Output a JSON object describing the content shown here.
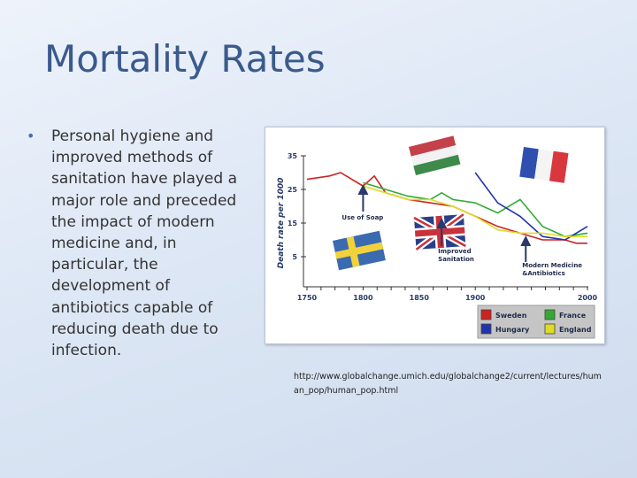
{
  "slide": {
    "title": "Mortality Rates",
    "bullet": "Personal hygiene and improved methods of sanitation have played a major role and preceded the impact of modern medicine and, in particular, the development of antibiotics capable of reducing death due to infection.",
    "source": "http://www.globalchange.umich.edu/globalchange2/current/lectures/human_pop/human_pop.html"
  },
  "chart_data": {
    "type": "line",
    "ylabel": "Death rate per 1000",
    "xlim": [
      1750,
      2000
    ],
    "ylim": [
      0,
      35
    ],
    "xticks": [
      "1750",
      "1800",
      "1850",
      "1900",
      "2000"
    ],
    "xtick_values": [
      1750,
      1800,
      1850,
      1900,
      2000
    ],
    "yticks": [
      "35",
      "25",
      "15",
      "5"
    ],
    "ytick_values": [
      35,
      25,
      15,
      5
    ],
    "legend_position": "bottom-right",
    "series": [
      {
        "name": "Sweden",
        "color": "#cc2222",
        "x": [
          1750,
          1770,
          1780,
          1800,
          1810,
          1820,
          1840,
          1860,
          1880,
          1900,
          1920,
          1940,
          1960,
          1980,
          1990,
          2000
        ],
        "y": [
          28,
          29,
          30,
          26,
          29,
          24,
          22,
          21,
          20,
          17,
          14,
          12,
          10,
          10,
          9,
          9
        ]
      },
      {
        "name": "France",
        "color": "#33aa33",
        "x": [
          1800,
          1820,
          1840,
          1860,
          1870,
          1880,
          1900,
          1920,
          1940,
          1960,
          1980,
          2000
        ],
        "y": [
          27,
          25,
          23,
          22,
          24,
          22,
          21,
          18,
          22,
          14,
          11,
          12
        ]
      },
      {
        "name": "Hungary",
        "color": "#2233aa",
        "x": [
          1900,
          1920,
          1940,
          1960,
          1980,
          2000
        ],
        "y": [
          30,
          21,
          17,
          11,
          10,
          14
        ]
      },
      {
        "name": "England",
        "color": "#dddd22",
        "x": [
          1800,
          1820,
          1840,
          1860,
          1880,
          1900,
          1920,
          1940,
          1960,
          1980,
          2000
        ],
        "y": [
          26,
          24,
          22,
          22,
          20,
          17,
          13,
          12,
          12,
          11,
          11
        ]
      }
    ],
    "annotations": [
      {
        "text": "Use of Soap",
        "x": 1800
      },
      {
        "text": "Improved Sanitation",
        "x": 1870
      },
      {
        "text": "Modern Medicine &Antibiotics",
        "x": 1945
      }
    ],
    "flags": [
      "hungary-flag",
      "france-flag",
      "sweden-flag",
      "uk-flag"
    ]
  }
}
